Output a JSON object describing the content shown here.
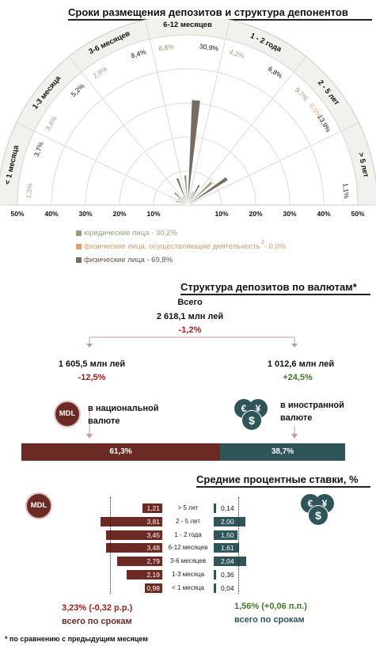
{
  "colors": {
    "legal": "#8aa57a",
    "entrepreneurs": "#e0a072",
    "individuals": "#776b62",
    "mdl": "#6b2a23",
    "fx": "#2f5558",
    "negative": "#a11c1c",
    "positive": "#3f7a2c"
  },
  "icons": {
    "mdl_coin": "mdl-coin-icon",
    "fx_coins": "currency-coins-icon"
  },
  "section1": {
    "title": "Сроки размещения депозитов и структура депонентов",
    "legend": [
      {
        "text": "юридические лица - 30,2%",
        "sup": "",
        "color_key": "legal"
      },
      {
        "text": "физические лица, осуществляющие деятельность",
        "sup": "3",
        "tail": " - 0,0%",
        "color_key": "entrepreneurs"
      },
      {
        "text": "физические лица - 69,8%",
        "sup": "",
        "color_key": "individuals"
      }
    ]
  },
  "section2": {
    "title": "Структура депозитов по валютам*",
    "total_label": "Всего",
    "total_value": "2 618,1 млн лей",
    "total_change": "-1,2%",
    "national_value": "1 605,5 млн лей",
    "national_change": "-12,5%",
    "national_label_1": "в национальной",
    "national_label_2": "валюте",
    "foreign_value": "1 012,6 млн лей",
    "foreign_change": "+24,5%",
    "foreign_label_1": "в иностранной",
    "foreign_label_2": "валюте",
    "mdl_badge": "MDL",
    "currency_symbols": [
      "€",
      "$",
      "¥"
    ]
  },
  "section3": {
    "title": "Средние процентные ставки, %",
    "mdl_badge": "MDL",
    "mdl_summary_value": "3,23%",
    "mdl_summary_change": "(-0,32 р.р.)",
    "mdl_summary_label": "всего по срокам",
    "fx_summary_value": "1,56%",
    "fx_summary_change": "(+0,06 п.п.)",
    "fx_summary_label": "всего по срокам"
  },
  "footnote": "* по сравнению с предыдущим месяцем",
  "chart_data": [
    {
      "type": "radial-bar",
      "title": "Сроки размещения депозитов и структура депонентов",
      "range": [
        0,
        50
      ],
      "axis_ticks_left": [
        "50%",
        "40%",
        "30%",
        "20%",
        "10%"
      ],
      "axis_ticks_right": [
        "10%",
        "20%",
        "30%",
        "40%",
        "50%"
      ],
      "categories": [
        "< 1 месяца",
        "1-3 месяца",
        "3-6 месяцев",
        "6-12 месяцев",
        "1 - 2 года",
        "2 - 5 лет",
        "> 5 лет"
      ],
      "series": [
        {
          "name": "юридические лица",
          "color_key": "legal",
          "values": [
            1.2,
            3.4,
            2.9,
            8.8,
            4.2,
            9.7,
            0.0
          ],
          "labels": [
            "1,2%",
            "3,4%",
            "2,9%",
            "8,8%",
            "4,2%",
            "9,7%",
            ""
          ]
        },
        {
          "name": "физические лица, осуществляющие деятельность",
          "color_key": "entrepreneurs",
          "values": [
            0.0,
            0.0,
            0.0,
            0.0,
            0.0,
            0.0,
            0.0
          ],
          "labels": [
            "",
            "",
            "",
            "",
            "",
            "0,0%",
            ""
          ]
        },
        {
          "name": "физические лица",
          "color_key": "individuals",
          "values": [
            3.7,
            5.2,
            8.4,
            30.9,
            6.8,
            13.9,
            1.1
          ],
          "labels": [
            "3,7%",
            "5,2%",
            "8,4%",
            "30,9%",
            "6,8%",
            "13,9%",
            "1,1%"
          ]
        }
      ]
    },
    {
      "type": "bar",
      "title": "Структура депозитов по валютам*",
      "orientation": "horizontal-stacked",
      "series": [
        {
          "name": "в национальной валюте",
          "value": 61.3,
          "label": "61,3%",
          "color_key": "mdl"
        },
        {
          "name": "в иностранной валюте",
          "value": 38.7,
          "label": "38,7%",
          "color_key": "fx"
        }
      ]
    },
    {
      "type": "bar",
      "title": "Средние процентные ставки, %",
      "orientation": "butterfly",
      "categories": [
        "> 5 лет",
        "2 - 5 лет",
        "1 - 2 года",
        "6-12 месяцев",
        "3-6 месяцев",
        "1-3 месяца",
        "< 1 месяца"
      ],
      "series": [
        {
          "name": "MDL",
          "values": [
            1.21,
            3.81,
            3.45,
            3.48,
            2.79,
            2.19,
            0.98
          ],
          "labels": [
            "1,21",
            "3,81",
            "3,45",
            "3,48",
            "2,79",
            "2,19",
            "0,98"
          ],
          "color_key": "mdl"
        },
        {
          "name": "FX",
          "values": [
            0.14,
            2.0,
            1.5,
            1.61,
            2.04,
            0.36,
            0.04
          ],
          "labels": [
            "0,14",
            "2,00",
            "1,50",
            "1,61",
            "2,04",
            "0,36",
            "0,04"
          ],
          "color_key": "fx"
        }
      ],
      "averages": {
        "mdl": 3.23,
        "fx": 1.56
      }
    }
  ]
}
